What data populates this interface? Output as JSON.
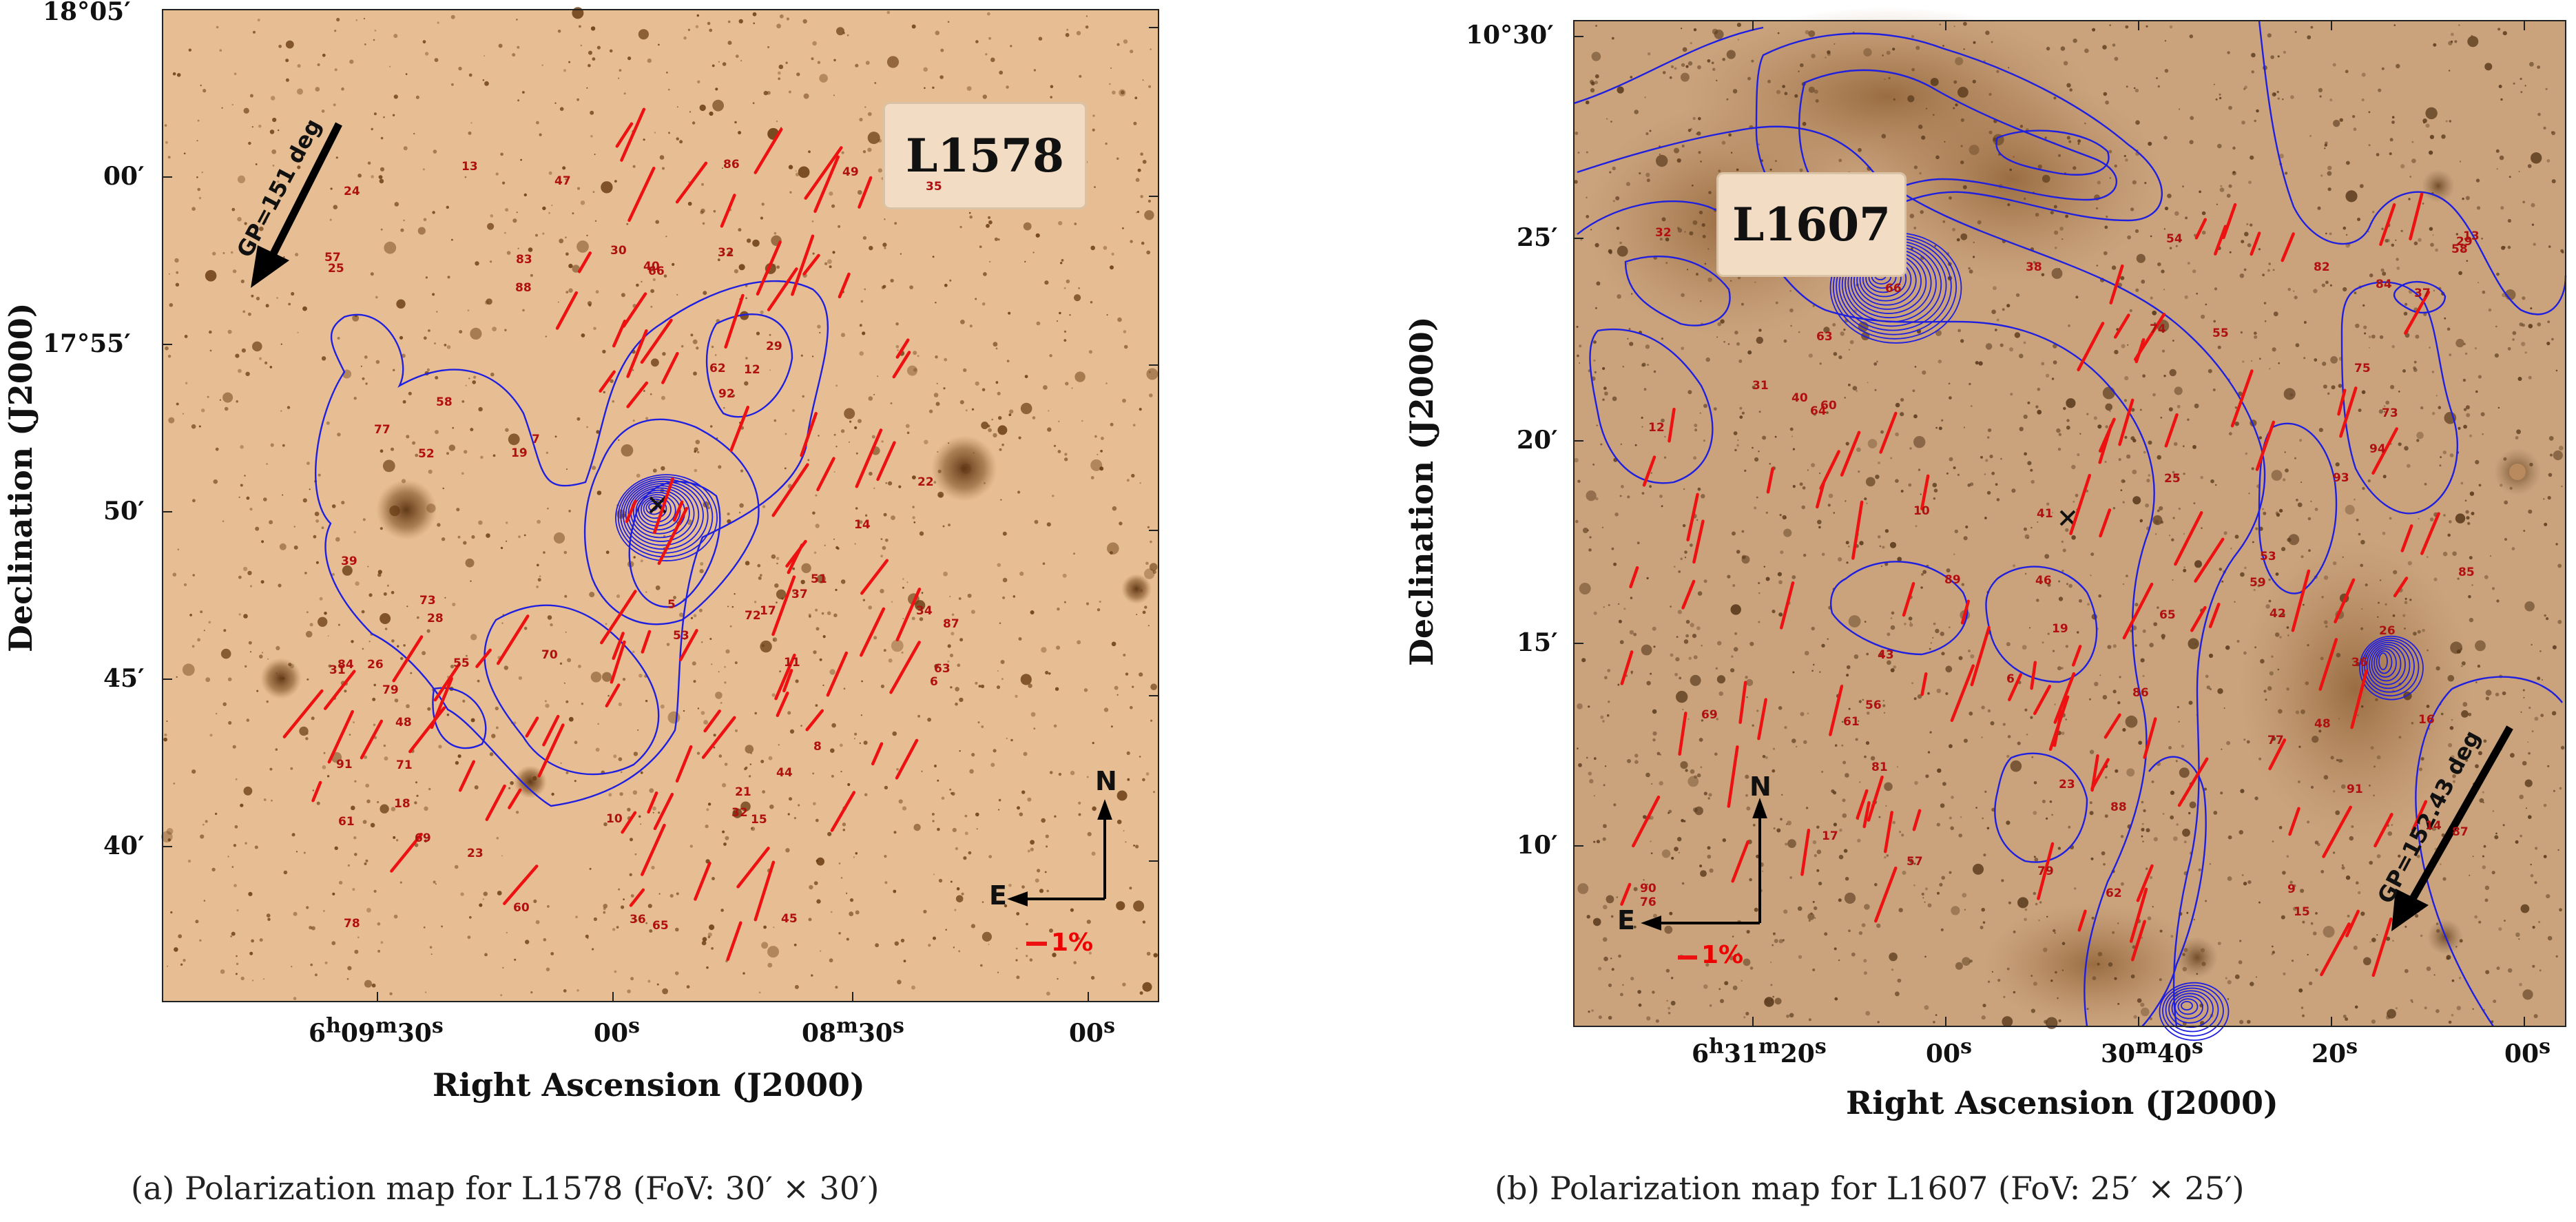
{
  "panels": {
    "a": {
      "cloud_label": "L1578",
      "gp_label": "GP=151 deg",
      "scale_label": "1%",
      "north_label": "N",
      "east_label": "E",
      "y_ticks": [
        "18°05′",
        "00′",
        "17°55′",
        "50′",
        "45′",
        "40′"
      ],
      "x_ticks": [
        {
          "h": "6",
          "hs": "h",
          "m": "09",
          "ms": "m",
          "s": "30",
          "ss": "s"
        },
        {
          "h": "",
          "hs": "",
          "m": "",
          "ms": "",
          "s": "00",
          "ss": "s"
        },
        {
          "h": "",
          "hs": "",
          "m": "08",
          "ms": "m",
          "s": "30",
          "ss": "s"
        },
        {
          "h": "",
          "hs": "",
          "m": "",
          "ms": "",
          "s": "00",
          "ss": "s"
        }
      ],
      "xlabel": "Right Ascension (J2000)",
      "ylabel": "Declination (J2000)",
      "caption": "(a) Polarization map for L1578 (FoV: 30′ × 30′)",
      "star_numbers": [
        "57",
        "58",
        "61",
        "62",
        "60",
        "65",
        "63",
        "71",
        "72",
        "66",
        "69",
        "70",
        "73",
        "77",
        "78",
        "79",
        "55",
        "12",
        "29",
        "83",
        "84",
        "86",
        "28",
        "32",
        "87",
        "91",
        "88",
        "21",
        "30",
        "31",
        "32",
        "37",
        "35",
        "36",
        "6",
        "5",
        "7",
        "8",
        "10",
        "92",
        "11",
        "13",
        "14",
        "15",
        "22",
        "34",
        "39",
        "40",
        "44",
        "45",
        "47",
        "48",
        "49",
        "51",
        "52",
        "53",
        "17",
        "18",
        "19",
        "24",
        "25",
        "23",
        "26"
      ]
    },
    "b": {
      "cloud_label": "L1607",
      "gp_label": "GP=152.43 deg",
      "scale_label": "1%",
      "north_label": "N",
      "east_label": "E",
      "y_ticks": [
        "10°30′",
        "25′",
        "20′",
        "15′",
        "10′"
      ],
      "x_ticks": [
        {
          "h": "6",
          "hs": "h",
          "m": "31",
          "ms": "m",
          "s": "20",
          "ss": "s"
        },
        {
          "h": "",
          "hs": "",
          "m": "",
          "ms": "",
          "s": "00",
          "ss": "s"
        },
        {
          "h": "",
          "hs": "",
          "m": "30",
          "ms": "m",
          "s": "40",
          "ss": "s"
        },
        {
          "h": "",
          "hs": "",
          "m": "",
          "ms": "",
          "s": "20",
          "ss": "s"
        },
        {
          "h": "",
          "hs": "",
          "m": "",
          "ms": "",
          "s": "00",
          "ss": "s"
        }
      ],
      "xlabel": "Right Ascension (J2000)",
      "ylabel": "Declination (J2000)",
      "caption": "(b) Polarization map for L1607 (FoV: 25′ × 25′)",
      "star_numbers": [
        "76",
        "77",
        "79",
        "81",
        "82",
        "73",
        "74",
        "75",
        "69",
        "84",
        "85",
        "86",
        "90",
        "89",
        "91",
        "93",
        "94",
        "87",
        "88",
        "40",
        "41",
        "42",
        "43",
        "46",
        "48",
        "53",
        "54",
        "55",
        "56",
        "59",
        "57",
        "58",
        "9",
        "60",
        "61",
        "62",
        "63",
        "64",
        "65",
        "66",
        "10",
        "6",
        "12",
        "13",
        "14",
        "17",
        "16",
        "15",
        "19",
        "23",
        "26",
        "31",
        "29",
        "32",
        "25",
        "37",
        "38",
        "36"
      ]
    }
  },
  "colors": {
    "background_a": "#e6bc92",
    "background_b": "#c9a27c",
    "contour": "#1f1fe0",
    "vector": "#ee1111",
    "label": "#b01010"
  }
}
